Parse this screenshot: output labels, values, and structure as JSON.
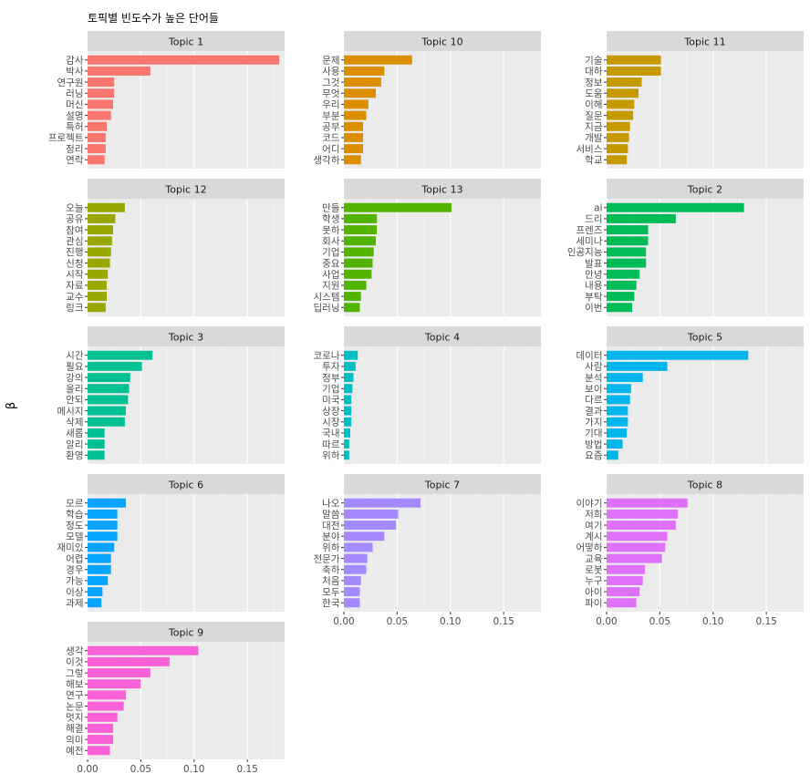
{
  "chart_data": {
    "type": "bar",
    "orientation": "horizontal",
    "facet": "wrap",
    "title": "토픽별 빈도수가 높은 단어들",
    "xlabel": "",
    "ylabel": "β",
    "xlim": [
      0,
      0.185
    ],
    "x_ticks": [
      0,
      0.05,
      0.1,
      0.15
    ],
    "x_tick_labels": [
      "0.00",
      "0.05",
      "0.10",
      "0.15"
    ],
    "grid": true,
    "legend": "none",
    "panels": [
      {
        "title": "Topic 1",
        "color": "#F8766D",
        "terms": [
          "감사",
          "박사",
          "연구원",
          "러닝",
          "머신",
          "설명",
          "특허",
          "프로젝트",
          "정리",
          "연락"
        ],
        "values": [
          0.18,
          0.059,
          0.025,
          0.025,
          0.024,
          0.022,
          0.018,
          0.017,
          0.017,
          0.016
        ]
      },
      {
        "title": "Topic 10",
        "color": "#DB8E00",
        "terms": [
          "문제",
          "사용",
          "그것",
          "무엇",
          "우리",
          "부분",
          "공부",
          "코드",
          "어디",
          "생각하"
        ],
        "values": [
          0.064,
          0.038,
          0.035,
          0.03,
          0.023,
          0.021,
          0.018,
          0.018,
          0.018,
          0.016
        ]
      },
      {
        "title": "Topic 11",
        "color": "#C49A00",
        "terms": [
          "기술",
          "대하",
          "정보",
          "도움",
          "이해",
          "질문",
          "지금",
          "개발",
          "서비스",
          "학교"
        ],
        "values": [
          0.051,
          0.051,
          0.033,
          0.03,
          0.026,
          0.025,
          0.022,
          0.021,
          0.02,
          0.019
        ]
      },
      {
        "title": "Topic 12",
        "color": "#99A800",
        "terms": [
          "오늘",
          "공유",
          "참여",
          "관심",
          "진행",
          "신청",
          "시작",
          "자료",
          "교수",
          "링크"
        ],
        "values": [
          0.035,
          0.026,
          0.024,
          0.023,
          0.022,
          0.021,
          0.019,
          0.018,
          0.018,
          0.017
        ]
      },
      {
        "title": "Topic 13",
        "color": "#53B400",
        "terms": [
          "만들",
          "학생",
          "못하",
          "회사",
          "기업",
          "중요",
          "사업",
          "지원",
          "시스템",
          "딥러닝"
        ],
        "values": [
          0.101,
          0.031,
          0.031,
          0.03,
          0.028,
          0.027,
          0.026,
          0.021,
          0.016,
          0.015
        ]
      },
      {
        "title": "Topic 2",
        "color": "#00BC56",
        "terms": [
          "ai",
          "드리",
          "프렌즈",
          "세미나",
          "인공지능",
          "발표",
          "안녕",
          "내용",
          "부탁",
          "이번"
        ],
        "values": [
          0.129,
          0.065,
          0.039,
          0.039,
          0.037,
          0.037,
          0.031,
          0.028,
          0.026,
          0.024
        ]
      },
      {
        "title": "Topic 3",
        "color": "#00C094",
        "terms": [
          "시간",
          "필요",
          "강의",
          "올리",
          "안되",
          "메시지",
          "삭제",
          "새롭",
          "알리",
          "환영"
        ],
        "values": [
          0.061,
          0.051,
          0.04,
          0.039,
          0.038,
          0.036,
          0.035,
          0.016,
          0.016,
          0.016
        ]
      },
      {
        "title": "Topic 4",
        "color": "#00BFC4",
        "terms": [
          "코로나",
          "투자",
          "정부",
          "기업",
          "미국",
          "상장",
          "시장",
          "국내",
          "따르",
          "위하"
        ],
        "values": [
          0.013,
          0.011,
          0.009,
          0.008,
          0.007,
          0.007,
          0.007,
          0.006,
          0.005,
          0.005
        ]
      },
      {
        "title": "Topic 5",
        "color": "#00B6EB",
        "terms": [
          "데이터",
          "사람",
          "분석",
          "보이",
          "다르",
          "결과",
          "가지",
          "기대",
          "방법",
          "요즘"
        ],
        "values": [
          0.133,
          0.057,
          0.034,
          0.023,
          0.022,
          0.02,
          0.02,
          0.019,
          0.015,
          0.011
        ]
      },
      {
        "title": "Topic 6",
        "color": "#06A4FF",
        "terms": [
          "모르",
          "학습",
          "정도",
          "모델",
          "재미있",
          "어렵",
          "경우",
          "가능",
          "이상",
          "과제"
        ],
        "values": [
          0.036,
          0.028,
          0.028,
          0.028,
          0.025,
          0.022,
          0.022,
          0.019,
          0.014,
          0.013
        ]
      },
      {
        "title": "Topic 7",
        "color": "#A58AFF",
        "terms": [
          "나오",
          "말씀",
          "대전",
          "분야",
          "위하",
          "전문가",
          "축하",
          "처음",
          "모두",
          "한국"
        ],
        "values": [
          0.072,
          0.051,
          0.049,
          0.038,
          0.027,
          0.022,
          0.021,
          0.016,
          0.015,
          0.015
        ]
      },
      {
        "title": "Topic 8",
        "color": "#DF70F8",
        "terms": [
          "이야기",
          "저희",
          "여기",
          "계시",
          "어떻하",
          "교육",
          "로봇",
          "누구",
          "아이",
          "파이"
        ],
        "values": [
          0.076,
          0.067,
          0.065,
          0.057,
          0.055,
          0.052,
          0.036,
          0.034,
          0.031,
          0.028
        ]
      },
      {
        "title": "Topic 9",
        "color": "#FB61D7",
        "terms": [
          "생각",
          "이것",
          "그렇",
          "해보",
          "연구",
          "논문",
          "멋지",
          "해결",
          "의미",
          "예전"
        ],
        "values": [
          0.104,
          0.077,
          0.059,
          0.05,
          0.036,
          0.034,
          0.028,
          0.024,
          0.024,
          0.021
        ]
      }
    ]
  }
}
